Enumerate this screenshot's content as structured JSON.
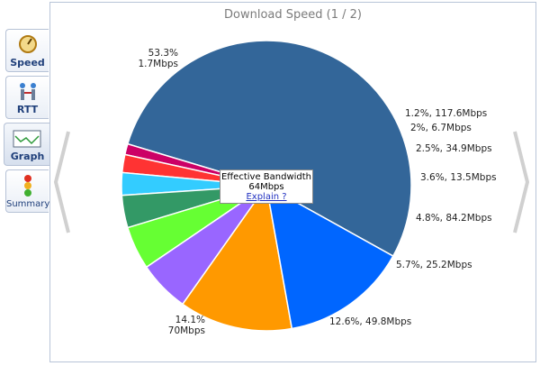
{
  "tabs": [
    {
      "label": "Speed",
      "icon": "speedometer-icon"
    },
    {
      "label": "RTT",
      "icon": "network-icon"
    },
    {
      "label": "Graph",
      "icon": "line-chart-icon",
      "active": true
    },
    {
      "label": "Summary",
      "icon": "traffic-light-icon"
    }
  ],
  "panel": {
    "title": "Download Speed (1 / 2)"
  },
  "tooltip": {
    "label": "Effective Bandwidth",
    "value": "64Mbps",
    "link": "Explain ?"
  },
  "chart_data": {
    "type": "pie",
    "title": "Download Speed (1 / 2)",
    "slices": [
      {
        "percent": 53.3,
        "speed": "1.7Mbps",
        "label": "53.3%\n1.7Mbps",
        "color": "#336699"
      },
      {
        "percent": 1.2,
        "speed": "117.6Mbps",
        "label": "1.2%, 117.6Mbps",
        "color": "#cc0066"
      },
      {
        "percent": 2,
        "speed": "6.7Mbps",
        "label": "2%, 6.7Mbps",
        "color": "#ff3333"
      },
      {
        "percent": 2.5,
        "speed": "34.9Mbps",
        "label": "2.5%, 34.9Mbps",
        "color": "#33ccff"
      },
      {
        "percent": 3.6,
        "speed": "13.5Mbps",
        "label": "3.6%, 13.5Mbps",
        "color": "#339966"
      },
      {
        "percent": 4.8,
        "speed": "84.2Mbps",
        "label": "4.8%, 84.2Mbps",
        "color": "#66ff33"
      },
      {
        "percent": 5.7,
        "speed": "25.2Mbps",
        "label": "5.7%, 25.2Mbps",
        "color": "#9966ff"
      },
      {
        "percent": 12.6,
        "speed": "49.8Mbps",
        "label": "12.6%, 49.8Mbps",
        "color": "#ff9900"
      },
      {
        "percent": 14.1,
        "speed": "70Mbps",
        "label": "14.1%\n70Mbps",
        "color": "#0066ff"
      }
    ]
  }
}
